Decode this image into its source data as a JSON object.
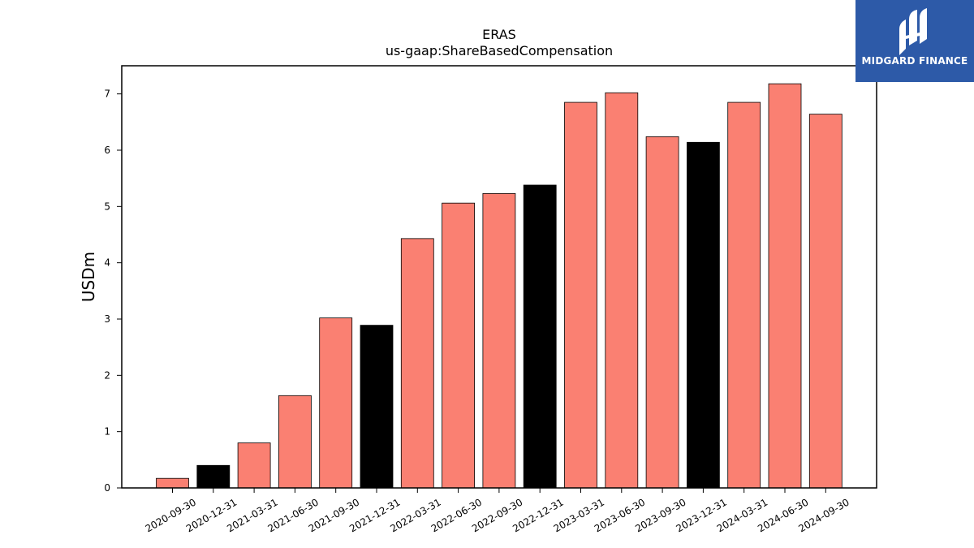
{
  "chart_data": {
    "type": "bar",
    "title": "ERAS",
    "subtitle": "us-gaap:ShareBasedCompensation",
    "xlabel": "",
    "ylabel": "USDm",
    "ylim": [
      0,
      7.5
    ],
    "yticks": [
      0,
      1,
      2,
      3,
      4,
      5,
      6,
      7
    ],
    "grid": false,
    "categories": [
      "2020-09-30",
      "2020-12-31",
      "2021-03-31",
      "2021-06-30",
      "2021-09-30",
      "2021-12-31",
      "2022-03-31",
      "2022-06-30",
      "2022-09-30",
      "2022-12-31",
      "2023-03-31",
      "2023-06-30",
      "2023-09-30",
      "2023-12-31",
      "2024-03-31",
      "2024-06-30",
      "2024-09-30"
    ],
    "values": [
      0.17,
      0.4,
      0.8,
      1.64,
      3.02,
      2.89,
      4.43,
      5.06,
      5.23,
      5.38,
      6.85,
      7.02,
      6.24,
      6.14,
      6.85,
      7.18,
      6.64
    ],
    "highlight": [
      false,
      true,
      false,
      false,
      false,
      true,
      false,
      false,
      false,
      true,
      false,
      false,
      false,
      true,
      false,
      false,
      false
    ],
    "colors": {
      "bar": "#fa8072",
      "highlight_bar": "#000000",
      "edge": "#000000"
    }
  },
  "logo": {
    "text": "MIDGARD FINANCE",
    "background": "#2d5aa8"
  }
}
